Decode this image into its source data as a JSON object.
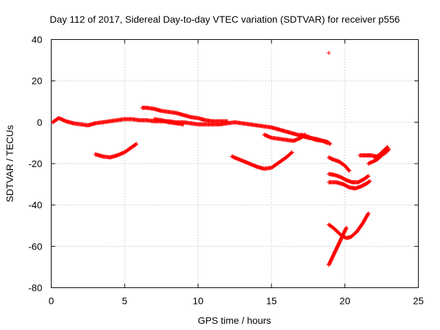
{
  "chart_data": {
    "type": "scatter",
    "title": "Day 112 of 2017, Sidereal Day-to-day VTEC variation (SDTVAR) for receiver p556",
    "xlabel": "GPS time / hours",
    "ylabel": "SDTVAR / TECUs",
    "xlim": [
      0,
      25
    ],
    "ylim": [
      -80,
      40
    ],
    "xticks": [
      0,
      5,
      10,
      15,
      20,
      25
    ],
    "yticks": [
      -80,
      -60,
      -40,
      -20,
      0,
      20,
      40
    ],
    "grid": true,
    "marker": "+",
    "color": "#ff0000",
    "series": [
      {
        "values": [
          [
            0.1,
            0
          ],
          [
            0.3,
            1
          ],
          [
            0.5,
            2
          ],
          [
            0.7,
            1.5
          ],
          [
            1.0,
            0.5
          ],
          [
            1.5,
            -0.5
          ],
          [
            2.0,
            -1
          ],
          [
            2.5,
            -1.5
          ],
          [
            3.0,
            -0.5
          ],
          [
            3.5,
            0
          ],
          [
            4.0,
            0.5
          ],
          [
            4.5,
            1
          ],
          [
            5.0,
            1.5
          ],
          [
            5.5,
            1.5
          ],
          [
            6.0,
            1
          ],
          [
            6.5,
            1
          ],
          [
            7.0,
            0.5
          ],
          [
            7.5,
            0.5
          ],
          [
            8.0,
            0.5
          ],
          [
            8.5,
            0
          ],
          [
            9.0,
            0
          ],
          [
            9.5,
            -0.5
          ],
          [
            10.0,
            -1
          ],
          [
            10.5,
            -1
          ],
          [
            11.0,
            -1
          ],
          [
            11.5,
            -1
          ],
          [
            12.0,
            -0.5
          ],
          [
            12.5,
            0
          ],
          [
            13.0,
            -0.5
          ],
          [
            13.5,
            -1
          ],
          [
            14.0,
            -1.5
          ],
          [
            14.5,
            -2
          ],
          [
            15.0,
            -2.5
          ],
          [
            15.5,
            -3.5
          ],
          [
            16.0,
            -4.5
          ],
          [
            16.5,
            -5.5
          ],
          [
            17.0,
            -6.5
          ],
          [
            17.5,
            -7.5
          ],
          [
            18.0,
            -8
          ],
          [
            18.5,
            -9
          ],
          [
            18.8,
            -10
          ]
        ]
      },
      {
        "values": [
          [
            3.0,
            -15.5
          ],
          [
            3.5,
            -16.5
          ],
          [
            4.0,
            -17
          ],
          [
            4.5,
            -16
          ],
          [
            5.0,
            -14.5
          ],
          [
            5.5,
            -12
          ],
          [
            5.8,
            -10.5
          ]
        ]
      },
      {
        "values": [
          [
            6.2,
            7
          ],
          [
            6.5,
            7
          ],
          [
            7.0,
            6.5
          ],
          [
            7.5,
            5.5
          ],
          [
            8.0,
            5
          ],
          [
            8.5,
            4.5
          ],
          [
            9.0,
            3.5
          ],
          [
            9.5,
            2.5
          ],
          [
            10.0,
            2
          ],
          [
            10.5,
            1
          ],
          [
            11.0,
            0.5
          ],
          [
            11.5,
            0.5
          ],
          [
            12.0,
            0.5
          ]
        ]
      },
      {
        "values": [
          [
            7.0,
            1.5
          ],
          [
            7.5,
            1
          ],
          [
            8.0,
            0
          ],
          [
            8.5,
            -0.5
          ],
          [
            9.0,
            -1
          ]
        ]
      },
      {
        "values": [
          [
            12.3,
            -16.5
          ],
          [
            12.8,
            -18
          ],
          [
            13.5,
            -20
          ],
          [
            14.0,
            -21.5
          ],
          [
            14.5,
            -22.5
          ],
          [
            15.0,
            -22
          ],
          [
            15.5,
            -19.5
          ],
          [
            16.0,
            -17
          ],
          [
            16.4,
            -14.5
          ]
        ]
      },
      {
        "values": [
          [
            14.5,
            -6
          ],
          [
            15.0,
            -7.5
          ],
          [
            15.5,
            -8
          ],
          [
            16.0,
            -8.5
          ],
          [
            16.5,
            -9
          ],
          [
            17.0,
            -7.5
          ],
          [
            17.3,
            -6
          ]
        ]
      },
      {
        "values": [
          [
            17.0,
            -6
          ],
          [
            17.5,
            -7
          ],
          [
            18.0,
            -8.5
          ],
          [
            18.5,
            -9
          ],
          [
            18.8,
            -9.5
          ],
          [
            19.0,
            -10.5
          ]
        ]
      },
      {
        "values": [
          [
            18.9,
            33.5
          ]
        ]
      },
      {
        "values": [
          [
            18.9,
            -17
          ],
          [
            19.2,
            -18
          ],
          [
            19.6,
            -19
          ],
          [
            20.0,
            -21
          ],
          [
            20.3,
            -23.5
          ]
        ]
      },
      {
        "values": [
          [
            18.9,
            -25
          ],
          [
            19.3,
            -25.5
          ],
          [
            19.7,
            -26.5
          ],
          [
            20.1,
            -28
          ],
          [
            20.5,
            -29
          ],
          [
            20.9,
            -29
          ],
          [
            21.3,
            -27.5
          ],
          [
            21.6,
            -26
          ]
        ]
      },
      {
        "values": [
          [
            18.9,
            -29
          ],
          [
            19.4,
            -29
          ],
          [
            19.9,
            -30
          ],
          [
            20.3,
            -31.5
          ],
          [
            20.7,
            -32
          ],
          [
            21.1,
            -31
          ],
          [
            21.5,
            -29.5
          ],
          [
            21.7,
            -28.5
          ]
        ]
      },
      {
        "values": [
          [
            18.9,
            -69
          ],
          [
            19.1,
            -66
          ],
          [
            19.3,
            -63
          ],
          [
            19.5,
            -60
          ],
          [
            19.7,
            -57
          ],
          [
            19.9,
            -54
          ],
          [
            20.1,
            -51
          ]
        ]
      },
      {
        "values": [
          [
            18.9,
            -49.5
          ],
          [
            19.2,
            -51
          ],
          [
            19.5,
            -53
          ],
          [
            19.8,
            -55
          ],
          [
            20.1,
            -56
          ],
          [
            20.4,
            -55.5
          ],
          [
            20.8,
            -53
          ],
          [
            21.2,
            -49
          ],
          [
            21.6,
            -44
          ]
        ]
      },
      {
        "values": [
          [
            21.0,
            -16
          ],
          [
            21.3,
            -16
          ],
          [
            21.6,
            -16
          ]
        ]
      },
      {
        "values": [
          [
            21.6,
            -20
          ],
          [
            21.9,
            -19
          ],
          [
            22.2,
            -18
          ],
          [
            22.5,
            -16
          ],
          [
            22.8,
            -14.5
          ],
          [
            23.0,
            -13
          ]
        ]
      },
      {
        "values": [
          [
            21.5,
            -16
          ],
          [
            21.8,
            -16
          ],
          [
            22.1,
            -16.5
          ]
        ]
      },
      {
        "values": [
          [
            22.0,
            -17
          ],
          [
            22.3,
            -16
          ],
          [
            22.6,
            -14
          ],
          [
            22.9,
            -12
          ]
        ]
      }
    ]
  }
}
